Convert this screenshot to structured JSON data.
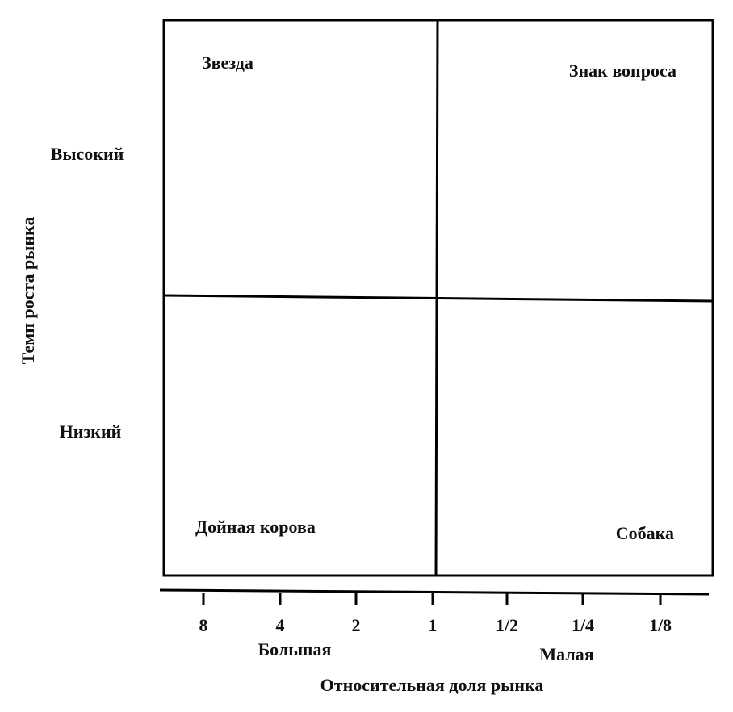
{
  "y_axis": {
    "title": "Темп роста рынка",
    "labels": [
      "Высокий",
      "Низкий"
    ]
  },
  "x_axis": {
    "title": "Относительная доля рынка",
    "ticks": [
      "8",
      "4",
      "2",
      "1",
      "1/2",
      "1/4",
      "1/8"
    ],
    "labels": [
      "Большая",
      "Малая"
    ]
  },
  "quadrants": [
    {
      "label": "Звезда"
    },
    {
      "label": "Знак вопроса"
    },
    {
      "label": "Дойная корова"
    },
    {
      "label": "Собака"
    }
  ]
}
